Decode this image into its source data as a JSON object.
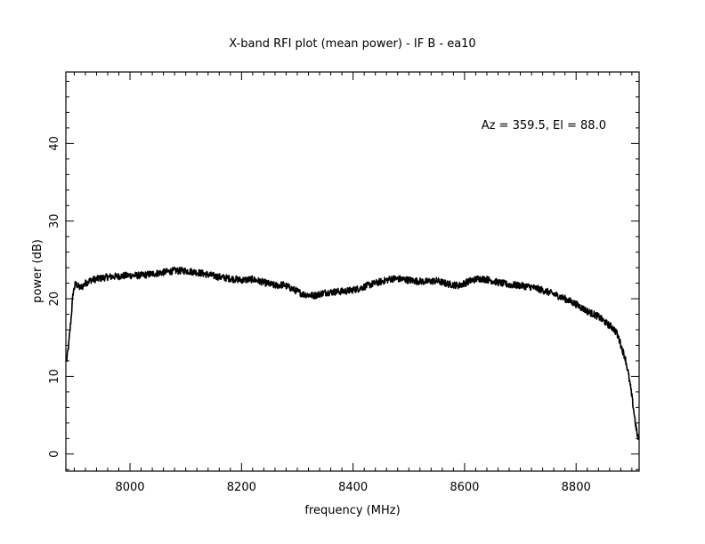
{
  "chart_data": {
    "type": "line",
    "title": "X-band RFI plot (mean power) - IF B - ea10",
    "xlabel": "frequency (MHz)",
    "ylabel": "power (dB)",
    "annotation": "Az = 359.5, El = 88.0",
    "xlim": [
      7885,
      8913
    ],
    "ylim": [
      -2.2,
      49.2
    ],
    "xticks": [
      8000,
      8200,
      8400,
      8600,
      8800
    ],
    "yticks": [
      0,
      10,
      20,
      30,
      40
    ],
    "xtick_labels": [
      "8000",
      "8200",
      "8400",
      "8600",
      "8800"
    ],
    "ytick_labels": [
      "0",
      "10",
      "20",
      "30",
      "40"
    ],
    "grid": false,
    "line_color": "#000000",
    "series": [
      {
        "x": [
          7886,
          7890,
          7894,
          7898,
          7902,
          7906,
          7910,
          7915,
          7920,
          7930,
          7945,
          7960,
          7980,
          8000,
          8020,
          8040,
          8060,
          8080,
          8100,
          8120,
          8140,
          8160,
          8180,
          8200,
          8220,
          8240,
          8260,
          8275,
          8290,
          8310,
          8330,
          8350,
          8370,
          8390,
          8410,
          8430,
          8450,
          8470,
          8490,
          8510,
          8530,
          8550,
          8570,
          8590,
          8610,
          8625,
          8640,
          8660,
          8680,
          8700,
          8720,
          8740,
          8760,
          8780,
          8800,
          8820,
          8840,
          8855,
          8865,
          8872,
          8878,
          8883,
          8888,
          8893,
          8898,
          8903,
          8908,
          8912
        ],
        "values": [
          11.8,
          14.0,
          17.2,
          20.8,
          21.9,
          21.7,
          21.4,
          21.6,
          22.0,
          22.4,
          22.6,
          22.8,
          22.9,
          23.0,
          23.0,
          23.2,
          23.4,
          23.6,
          23.6,
          23.4,
          23.1,
          22.8,
          22.6,
          22.4,
          22.5,
          22.1,
          21.7,
          21.8,
          21.3,
          20.6,
          20.4,
          20.8,
          20.9,
          21.0,
          21.3,
          21.8,
          22.2,
          22.6,
          22.5,
          22.3,
          22.2,
          22.3,
          21.9,
          21.7,
          22.3,
          22.6,
          22.5,
          22.1,
          21.8,
          21.7,
          21.5,
          21.1,
          20.6,
          20.0,
          19.3,
          18.4,
          17.7,
          16.8,
          16.3,
          15.7,
          14.6,
          13.4,
          12.4,
          10.6,
          8.4,
          5.8,
          3.1,
          1.8
        ]
      }
    ]
  }
}
